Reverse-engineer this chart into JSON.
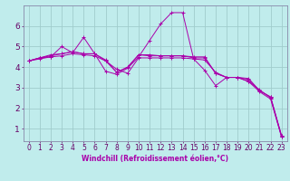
{
  "xlabel": "Windchill (Refroidissement éolien,°C)",
  "background_color": "#c0ecec",
  "grid_color": "#a0cccc",
  "line_color": "#aa00aa",
  "spine_color": "#8888aa",
  "tick_color": "#660066",
  "xlim": [
    -0.5,
    23.5
  ],
  "ylim": [
    0.4,
    7.0
  ],
  "yticks": [
    1,
    2,
    3,
    4,
    5,
    6
  ],
  "xticks": [
    0,
    1,
    2,
    3,
    4,
    5,
    6,
    7,
    8,
    9,
    10,
    11,
    12,
    13,
    14,
    15,
    16,
    17,
    18,
    19,
    20,
    21,
    22,
    23
  ],
  "lines": [
    [
      4.3,
      4.45,
      4.5,
      5.0,
      4.7,
      5.45,
      4.65,
      3.8,
      3.65,
      3.95,
      4.5,
      5.3,
      6.1,
      6.65,
      6.65,
      4.4,
      3.85,
      3.1,
      3.5,
      3.5,
      3.3,
      2.9,
      2.5,
      0.6
    ],
    [
      4.3,
      4.45,
      4.55,
      4.65,
      4.75,
      4.65,
      4.65,
      4.3,
      3.75,
      4.0,
      4.6,
      4.6,
      4.55,
      4.55,
      4.55,
      4.5,
      4.5,
      3.7,
      3.5,
      3.5,
      3.45,
      2.85,
      2.55,
      0.65
    ],
    [
      4.3,
      4.45,
      4.6,
      4.65,
      4.75,
      4.65,
      4.65,
      4.35,
      3.75,
      4.0,
      4.6,
      4.55,
      4.55,
      4.55,
      4.55,
      4.45,
      4.45,
      3.7,
      3.5,
      3.5,
      3.4,
      2.85,
      2.55,
      0.65
    ],
    [
      4.3,
      4.4,
      4.5,
      4.55,
      4.65,
      4.6,
      4.55,
      4.3,
      3.9,
      3.7,
      4.45,
      4.45,
      4.45,
      4.45,
      4.45,
      4.4,
      4.35,
      3.75,
      3.5,
      3.5,
      3.3,
      2.8,
      2.45,
      0.6
    ]
  ],
  "tick_fontsize": 5.5,
  "xlabel_fontsize": 5.5
}
